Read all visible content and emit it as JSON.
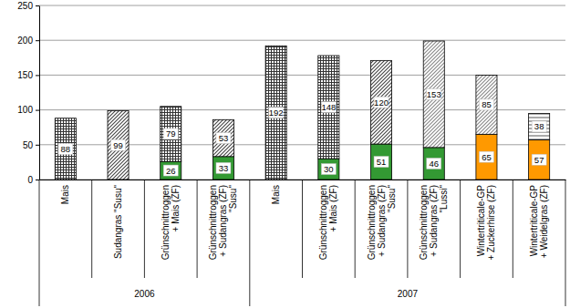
{
  "chart_data": {
    "type": "bar",
    "stacked": true,
    "data_labels": true,
    "grid": true,
    "categories": [
      "Mais",
      "Sudangras \"Susu\"",
      "Grünschnittroggen\n+ Mais (ZF)",
      "Grünschnittroggen\n+ Sudangras (ZF)\n\"Susu\"",
      "Mais",
      "Grünschnittroggen\n+ Mais (ZF)",
      "Grünschnittroggen\n+ Sudangras (ZF)\n\"Susu\"",
      "Grünschnittroggen\n+ Sudangras (ZF)\n\"Lussi\"",
      "Wintertriticale-GP\n+ Zuckerhirse (ZF)",
      "Wintertriticale-GP\n+ Weidelgras (ZF)"
    ],
    "category_groups": [
      "2006",
      "2006",
      "2006",
      "2006",
      "2007",
      "2007",
      "2007",
      "2007",
      "2007",
      "2007"
    ],
    "ylim": [
      0,
      250
    ],
    "yticks": [
      0,
      50,
      100,
      150,
      200,
      250
    ],
    "series": [
      {
        "values": [
          null,
          null,
          26,
          33,
          null,
          30,
          51,
          46,
          65,
          57
        ],
        "colors": [
          null,
          null,
          "#339933",
          "#339933",
          null,
          "#339933",
          "#339933",
          "#339933",
          "#ff9900",
          "#ff9900"
        ]
      },
      {
        "values": [
          88,
          99,
          79,
          53,
          192,
          148,
          120,
          153,
          85,
          38
        ],
        "colors": [
          "#333333",
          "#444444",
          "#333333",
          "#444444",
          "#333333",
          "#333333",
          "#444444",
          "#888888",
          "#888888",
          "#555555"
        ]
      }
    ]
  }
}
